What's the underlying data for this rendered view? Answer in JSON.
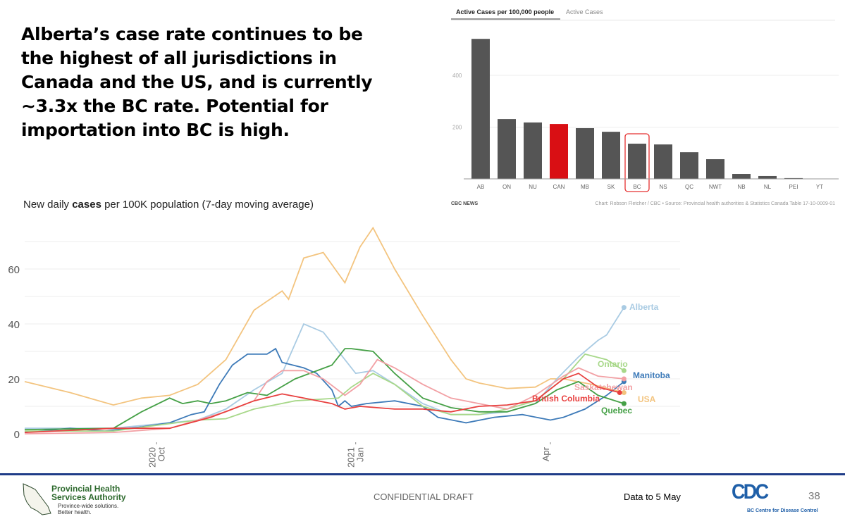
{
  "headline": "Alberta’s case rate continues to be the highest of all jurisdictions in Canada and the US, and is currently ~3.3x the BC rate. Potential for importation into BC is high.",
  "footer": {
    "org_name_line1": "Provincial Health",
    "org_name_line2": "Services Authority",
    "org_tagline_line1": "Province-wide solutions.",
    "org_tagline_line2": "Better health.",
    "confidential": "CONFIDENTIAL DRAFT",
    "data_to": "Data to 5 May",
    "cdc_name": "BC Centre for Disease Control",
    "cdc_logo_text": "CDC",
    "page_number": "38",
    "rule_color": "#1f3c88"
  },
  "chart_data": [
    {
      "type": "bar",
      "tabs": [
        "Active Cases per 100,000 people",
        "Active Cases"
      ],
      "active_tab": 0,
      "categories": [
        "AB",
        "ON",
        "NU",
        "CAN",
        "MB",
        "SK",
        "BC",
        "NS",
        "QC",
        "NWT",
        "NB",
        "NL",
        "PEI",
        "YT"
      ],
      "values": [
        541,
        231,
        218,
        212,
        196,
        182,
        136,
        133,
        103,
        76,
        19,
        11,
        3,
        0
      ],
      "highlight_color": "#d90f14",
      "bar_color": "#555555",
      "highlighted": "CAN",
      "boxed": "BC",
      "yticks": [
        200,
        400
      ],
      "ylim": [
        0,
        560
      ],
      "source_left": "CBC NEWS",
      "source_right": "Chart: Robson Fletcher / CBC • Source: Provincial health authorities & Statistics Canada Table 17-10-0009-01"
    },
    {
      "type": "line",
      "title_pre": "New daily ",
      "title_bold": "cases",
      "title_post": " per 100K population (7-day moving average)",
      "x_unit": "days since 2020-08-01",
      "xlim": [
        0,
        300
      ],
      "ylim": [
        0,
        70
      ],
      "yticks": [
        0,
        20,
        40,
        60
      ],
      "gridlines": [
        0,
        10,
        20,
        30,
        40,
        50,
        60,
        70
      ],
      "xticks": [
        {
          "x": 61,
          "label1": "2020",
          "label2": "Oct"
        },
        {
          "x": 153,
          "label1": "2021",
          "label2": "Jan"
        },
        {
          "x": 243,
          "label1": "Apr",
          "label2": ""
        }
      ],
      "series": [
        {
          "name": "USA",
          "color": "#f3c47f",
          "label": "USA",
          "points": [
            [
              0,
              19
            ],
            [
              21,
              15
            ],
            [
              41,
              10.5
            ],
            [
              54,
              13
            ],
            [
              67,
              14
            ],
            [
              80,
              18
            ],
            [
              93,
              27
            ],
            [
              106,
              45
            ],
            [
              119,
              52
            ],
            [
              122,
              49
            ],
            [
              129,
              64
            ],
            [
              138,
              66
            ],
            [
              148,
              55
            ],
            [
              155,
              68
            ],
            [
              161,
              75
            ],
            [
              171,
              60
            ],
            [
              184,
              43
            ],
            [
              197,
              27
            ],
            [
              204,
              20
            ],
            [
              210,
              18.5
            ],
            [
              223,
              16.5
            ],
            [
              236,
              17
            ],
            [
              243,
              20
            ],
            [
              249,
              20
            ],
            [
              262,
              18
            ],
            [
              277,
              15
            ]
          ]
        },
        {
          "name": "Alberta",
          "color": "#a9cbe3",
          "label": "Alberta",
          "points": [
            [
              0,
              2
            ],
            [
              41,
              2
            ],
            [
              54,
              3
            ],
            [
              80,
              5
            ],
            [
              93,
              9
            ],
            [
              106,
              16
            ],
            [
              119,
              22
            ],
            [
              129,
              40
            ],
            [
              138,
              37
            ],
            [
              148,
              27
            ],
            [
              153,
              22
            ],
            [
              161,
              23
            ],
            [
              171,
              18
            ],
            [
              184,
              11
            ],
            [
              197,
              7
            ],
            [
              210,
              7
            ],
            [
              223,
              8
            ],
            [
              236,
              11
            ],
            [
              246,
              20
            ],
            [
              256,
              28
            ],
            [
              265,
              34
            ],
            [
              269,
              36
            ],
            [
              277,
              46
            ]
          ]
        },
        {
          "name": "Manitoba",
          "color": "#3d7ab8",
          "label": "Manitoba",
          "points": [
            [
              0,
              0.5
            ],
            [
              21,
              2
            ],
            [
              37,
              1
            ],
            [
              54,
              2.5
            ],
            [
              67,
              4
            ],
            [
              77,
              7
            ],
            [
              83,
              8
            ],
            [
              90,
              18
            ],
            [
              96,
              25
            ],
            [
              103,
              29
            ],
            [
              112,
              29
            ],
            [
              116,
              31
            ],
            [
              119,
              26
            ],
            [
              129,
              24
            ],
            [
              135,
              22
            ],
            [
              142,
              16
            ],
            [
              145,
              10
            ],
            [
              148,
              12
            ],
            [
              151,
              10
            ],
            [
              158,
              11
            ],
            [
              171,
              12
            ],
            [
              184,
              10
            ],
            [
              191,
              6
            ],
            [
              204,
              4
            ],
            [
              217,
              6
            ],
            [
              230,
              7
            ],
            [
              243,
              5
            ],
            [
              249,
              6
            ],
            [
              259,
              9
            ],
            [
              269,
              14
            ],
            [
              277,
              19
            ]
          ]
        },
        {
          "name": "Ontario",
          "color": "#a8d88a",
          "label": "Ontario",
          "points": [
            [
              0,
              1
            ],
            [
              41,
              1
            ],
            [
              60,
              3
            ],
            [
              80,
              5
            ],
            [
              93,
              5.5
            ],
            [
              106,
              9
            ],
            [
              125,
              12
            ],
            [
              145,
              13
            ],
            [
              151,
              17
            ],
            [
              161,
              22
            ],
            [
              171,
              18
            ],
            [
              184,
              10
            ],
            [
              197,
              7
            ],
            [
              210,
              7
            ],
            [
              223,
              9
            ],
            [
              236,
              12
            ],
            [
              249,
              20
            ],
            [
              259,
              29
            ],
            [
              269,
              27
            ],
            [
              277,
              23
            ]
          ]
        },
        {
          "name": "Quebec",
          "color": "#45a046",
          "label": "Quebec",
          "points": [
            [
              0,
              1.5
            ],
            [
              41,
              2
            ],
            [
              54,
              8
            ],
            [
              67,
              13
            ],
            [
              73,
              11
            ],
            [
              80,
              12
            ],
            [
              86,
              11
            ],
            [
              93,
              12
            ],
            [
              103,
              15
            ],
            [
              112,
              14
            ],
            [
              125,
              20
            ],
            [
              142,
              25
            ],
            [
              148,
              31
            ],
            [
              151,
              31
            ],
            [
              161,
              30
            ],
            [
              171,
              22
            ],
            [
              184,
              13
            ],
            [
              197,
              9.5
            ],
            [
              210,
              8
            ],
            [
              223,
              8
            ],
            [
              236,
              11
            ],
            [
              246,
              16
            ],
            [
              256,
              19
            ],
            [
              265,
              14
            ],
            [
              277,
              11
            ]
          ]
        },
        {
          "name": "Saskatchewan",
          "color": "#f2a0a4",
          "label": "Saskatchewan",
          "points": [
            [
              0,
              0
            ],
            [
              41,
              0.5
            ],
            [
              67,
              2
            ],
            [
              80,
              5
            ],
            [
              93,
              8
            ],
            [
              106,
              12
            ],
            [
              112,
              19
            ],
            [
              119,
              23
            ],
            [
              129,
              23
            ],
            [
              138,
              20
            ],
            [
              148,
              14
            ],
            [
              155,
              18
            ],
            [
              163,
              27
            ],
            [
              171,
              24
            ],
            [
              184,
              18
            ],
            [
              197,
              13
            ],
            [
              210,
              11
            ],
            [
              223,
              9
            ],
            [
              236,
              14
            ],
            [
              249,
              21
            ],
            [
              256,
              24
            ],
            [
              265,
              21
            ],
            [
              277,
              20
            ]
          ]
        },
        {
          "name": "British Columbia",
          "color": "#e8403f",
          "label": "British Columbia",
          "points": [
            [
              0,
              0.5
            ],
            [
              41,
              2
            ],
            [
              67,
              2
            ],
            [
              86,
              6
            ],
            [
              106,
              12
            ],
            [
              119,
              14.5
            ],
            [
              129,
              13
            ],
            [
              142,
              11
            ],
            [
              148,
              9
            ],
            [
              155,
              10
            ],
            [
              171,
              9
            ],
            [
              184,
              9
            ],
            [
              197,
              8
            ],
            [
              210,
              10
            ],
            [
              223,
              10.5
            ],
            [
              236,
              12
            ],
            [
              249,
              20
            ],
            [
              256,
              22
            ],
            [
              265,
              17
            ],
            [
              275,
              15
            ]
          ]
        }
      ]
    }
  ]
}
